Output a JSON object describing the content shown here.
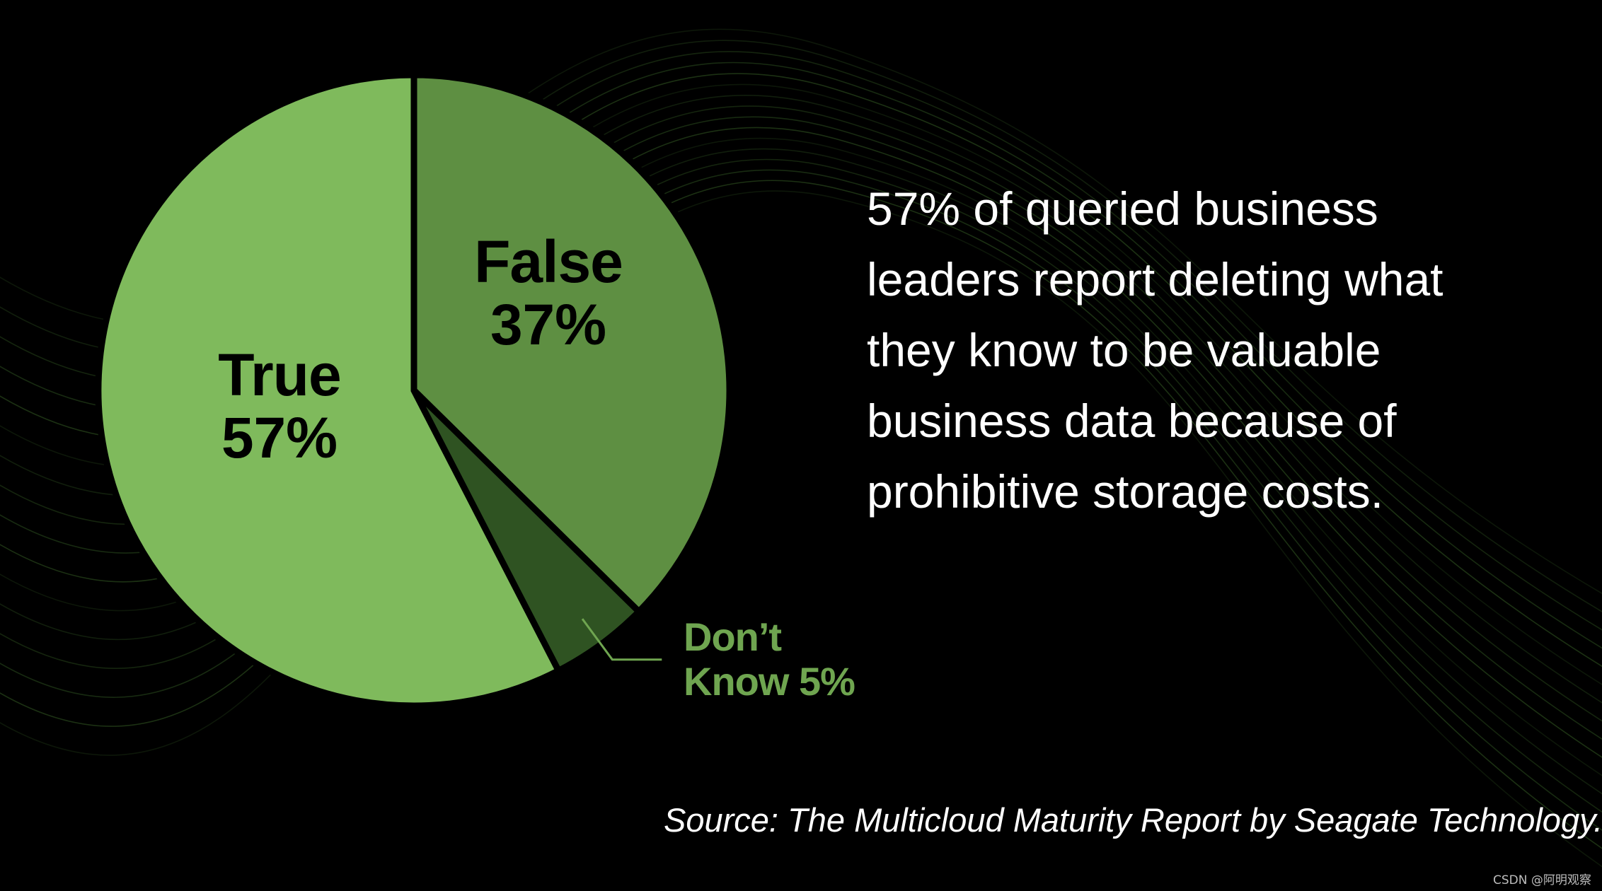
{
  "colors": {
    "background": "#000000",
    "true_slice": "#7fba5c",
    "false_slice": "#5e8f42",
    "dont_know_slice": "#2f5322",
    "dont_know_label": "#6fa550",
    "slice_border": "#000000",
    "wave_lines": "#3d6b2a"
  },
  "chart_data": {
    "type": "pie",
    "title": "",
    "slices": [
      {
        "label": "True",
        "value": 57,
        "display": "57%"
      },
      {
        "label": "False",
        "value": 37,
        "display": "37%"
      },
      {
        "label": "Don’t Know",
        "value": 5,
        "display": "5%"
      }
    ],
    "annotations": {
      "true_name": "True",
      "true_pct": "57%",
      "false_name": "False",
      "false_pct": "37%",
      "dont_know_line1": "Don’t",
      "dont_know_line2": "Know 5%"
    }
  },
  "headline": "57% of queried business\nleaders report deleting what\nthey know to be valuable\nbusiness data because of\nprohibitive storage costs.",
  "source": "Source: The Multicloud Maturity Report by Seagate Technology.",
  "watermark": "CSDN @阿明观察"
}
